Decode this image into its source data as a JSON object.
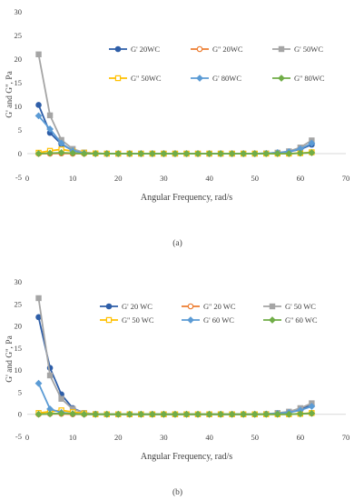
{
  "chart_data": [
    {
      "type": "line",
      "panel_label": "(a)",
      "ylabel": "G' and G'', Pa",
      "xlabel": "Angular Frequency, rad/s",
      "xlim": [
        0,
        70
      ],
      "ylim": [
        -5,
        30
      ],
      "xticks": [
        0,
        10,
        20,
        30,
        40,
        50,
        60,
        70
      ],
      "yticks": [
        -5,
        0,
        5,
        10,
        15,
        20,
        25,
        30
      ],
      "legend_position": "top-right",
      "series": [
        {
          "name": "G' 20WC",
          "color": "#2e5ea8",
          "marker": "circle",
          "filled": true,
          "x": [
            2.5,
            5,
            7.5,
            10,
            12.5,
            15,
            17.5,
            20,
            22.5,
            25,
            27.5,
            30,
            32.5,
            35,
            37.5,
            40,
            42.5,
            45,
            47.5,
            50,
            52.5,
            55,
            57.5,
            60,
            62.5
          ],
          "y": [
            10.3,
            4.4,
            2,
            0.7,
            0.15,
            0.05,
            0,
            0,
            0,
            0,
            0,
            0,
            0,
            0,
            0,
            0,
            0,
            0,
            0,
            0,
            0.05,
            0.2,
            0.4,
            0.9,
            1.9
          ]
        },
        {
          "name": "G'' 20WC",
          "color": "#ed7d31",
          "marker": "circle",
          "filled": false,
          "x": [
            2.5,
            5,
            7.5,
            10,
            12.5,
            15,
            17.5,
            20,
            22.5,
            25,
            27.5,
            30,
            32.5,
            35,
            37.5,
            40,
            42.5,
            45,
            47.5,
            50,
            52.5,
            55,
            57.5,
            60,
            62.5
          ],
          "y": [
            0,
            0,
            0.05,
            0,
            0,
            0,
            0,
            0,
            0,
            0,
            0,
            0,
            0,
            0,
            0,
            0,
            0,
            0,
            0,
            0,
            0,
            0,
            0,
            0.1,
            0.2
          ]
        },
        {
          "name": "G' 50WC",
          "color": "#a5a5a5",
          "marker": "square",
          "filled": true,
          "x": [
            2.5,
            5,
            7.5,
            10,
            12.5,
            15,
            17.5,
            20,
            22.5,
            25,
            27.5,
            30,
            32.5,
            35,
            37.5,
            40,
            42.5,
            45,
            47.5,
            50,
            52.5,
            55,
            57.5,
            60,
            62.5
          ],
          "y": [
            21,
            8.1,
            2.9,
            1,
            0.25,
            0.05,
            0,
            0,
            0,
            0,
            0,
            0,
            0,
            0,
            0,
            0,
            0,
            0,
            0,
            0,
            0.05,
            0.2,
            0.5,
            1.3,
            2.8
          ]
        },
        {
          "name": "G'' 50WC",
          "color": "#ffc000",
          "marker": "square",
          "filled": false,
          "x": [
            2.5,
            5,
            7.5,
            10,
            12.5,
            15,
            17.5,
            20,
            22.5,
            25,
            27.5,
            30,
            32.5,
            35,
            37.5,
            40,
            42.5,
            45,
            47.5,
            50,
            52.5,
            55,
            57.5,
            60,
            62.5
          ],
          "y": [
            0.2,
            0.6,
            0.9,
            0.5,
            0.2,
            0.05,
            0,
            0,
            0,
            0,
            0,
            0,
            0,
            0,
            0,
            0,
            0,
            0,
            0,
            0,
            0,
            0,
            0,
            0.1,
            0.3
          ]
        },
        {
          "name": "G' 80WC",
          "color": "#5b9bd5",
          "marker": "diamond",
          "filled": true,
          "x": [
            2.5,
            5,
            7.5,
            10,
            12.5,
            15,
            17.5,
            20,
            22.5,
            25,
            27.5,
            30,
            32.5,
            35,
            37.5,
            40,
            42.5,
            45,
            47.5,
            50,
            52.5,
            55,
            57.5,
            60,
            62.5
          ],
          "y": [
            8,
            5.2,
            2.2,
            0.6,
            0.1,
            0,
            0,
            0,
            0,
            0,
            0,
            0,
            0,
            0,
            0,
            0,
            0,
            0,
            0,
            0,
            0.05,
            0.2,
            0.4,
            1,
            2.2
          ]
        },
        {
          "name": "G'' 80WC",
          "color": "#70ad47",
          "marker": "diamond",
          "filled": true,
          "x": [
            2.5,
            5,
            7.5,
            10,
            12.5,
            15,
            17.5,
            20,
            22.5,
            25,
            27.5,
            30,
            32.5,
            35,
            37.5,
            40,
            42.5,
            45,
            47.5,
            50,
            52.5,
            55,
            57.5,
            60,
            62.5
          ],
          "y": [
            0,
            0.1,
            0.2,
            0.1,
            0,
            0,
            0,
            0,
            0,
            0,
            0,
            0,
            0,
            0,
            0,
            0,
            0,
            0,
            0,
            0,
            0,
            0,
            0,
            0.1,
            0.2
          ]
        }
      ]
    },
    {
      "type": "line",
      "panel_label": "(b)",
      "ylabel": "G' and G'', Pa",
      "xlabel": "Angular Frequency, rad/s",
      "xlim": [
        0,
        70
      ],
      "ylim": [
        -5,
        30
      ],
      "xticks": [
        0,
        10,
        20,
        30,
        40,
        50,
        60,
        70
      ],
      "yticks": [
        -5,
        0,
        5,
        10,
        15,
        20,
        25,
        30
      ],
      "legend_position": "top-right",
      "series": [
        {
          "name": "G' 20 WC",
          "color": "#2e5ea8",
          "marker": "circle",
          "filled": true,
          "x": [
            2.5,
            5,
            7.5,
            10,
            12.5,
            15,
            17.5,
            20,
            22.5,
            25,
            27.5,
            30,
            32.5,
            35,
            37.5,
            40,
            42.5,
            45,
            47.5,
            50,
            52.5,
            55,
            57.5,
            60,
            62.5
          ],
          "y": [
            22,
            10.5,
            4.5,
            1.4,
            0.3,
            0.05,
            0,
            0,
            0,
            0,
            0,
            0,
            0,
            0,
            0,
            0,
            0,
            0,
            0,
            0,
            0.05,
            0.2,
            0.5,
            1.1,
            2.1
          ]
        },
        {
          "name": "G'' 20 WC",
          "color": "#ed7d31",
          "marker": "circle",
          "filled": false,
          "x": [
            2.5,
            5,
            7.5,
            10,
            12.5,
            15,
            17.5,
            20,
            22.5,
            25,
            27.5,
            30,
            32.5,
            35,
            37.5,
            40,
            42.5,
            45,
            47.5,
            50,
            52.5,
            55,
            57.5,
            60,
            62.5
          ],
          "y": [
            0,
            0.1,
            0.1,
            0,
            0,
            0,
            0,
            0,
            0,
            0,
            0,
            0,
            0,
            0,
            0,
            0,
            0,
            0,
            0,
            0,
            0,
            0,
            0,
            0.1,
            0.2
          ]
        },
        {
          "name": "G' 50 WC",
          "color": "#a5a5a5",
          "marker": "square",
          "filled": true,
          "x": [
            2.5,
            5,
            7.5,
            10,
            12.5,
            15,
            17.5,
            20,
            22.5,
            25,
            27.5,
            30,
            32.5,
            35,
            37.5,
            40,
            42.5,
            45,
            47.5,
            50,
            52.5,
            55,
            57.5,
            60,
            62.5
          ],
          "y": [
            26.3,
            8.8,
            3.5,
            1.2,
            0.3,
            0.05,
            0,
            0,
            0,
            0,
            0,
            0,
            0,
            0,
            0,
            0,
            0,
            0,
            0,
            0,
            0.05,
            0.3,
            0.6,
            1.4,
            2.5
          ]
        },
        {
          "name": "G'' 50 WC",
          "color": "#ffc000",
          "marker": "square",
          "filled": false,
          "x": [
            2.5,
            5,
            7.5,
            10,
            12.5,
            15,
            17.5,
            20,
            22.5,
            25,
            27.5,
            30,
            32.5,
            35,
            37.5,
            40,
            42.5,
            45,
            47.5,
            50,
            52.5,
            55,
            57.5,
            60,
            62.5
          ],
          "y": [
            0.3,
            0.6,
            0.9,
            0.5,
            0.2,
            0,
            0,
            0,
            0,
            0,
            0,
            0,
            0,
            0,
            0,
            0,
            0,
            0,
            0,
            0,
            0,
            0,
            0,
            0.1,
            0.3
          ]
        },
        {
          "name": "G' 60 WC",
          "color": "#5b9bd5",
          "marker": "diamond",
          "filled": true,
          "x": [
            2.5,
            5,
            7.5,
            10,
            12.5,
            15,
            17.5,
            20,
            22.5,
            25,
            27.5,
            30,
            32.5,
            35,
            37.5,
            40,
            42.5,
            45,
            47.5,
            50,
            52.5,
            55,
            57.5,
            60,
            62.5
          ],
          "y": [
            7,
            1.2,
            0.4,
            0.1,
            0,
            0,
            0,
            0,
            0,
            0,
            0,
            0,
            0,
            0,
            0,
            0,
            0,
            0,
            0,
            0,
            0.05,
            0.2,
            0.4,
            0.9,
            1.8
          ]
        },
        {
          "name": "G'' 60 WC",
          "color": "#70ad47",
          "marker": "diamond",
          "filled": true,
          "x": [
            2.5,
            5,
            7.5,
            10,
            12.5,
            15,
            17.5,
            20,
            22.5,
            25,
            27.5,
            30,
            32.5,
            35,
            37.5,
            40,
            42.5,
            45,
            47.5,
            50,
            52.5,
            55,
            57.5,
            60,
            62.5
          ],
          "y": [
            0,
            0.1,
            0.2,
            0.1,
            0,
            0,
            0,
            0,
            0,
            0,
            0,
            0,
            0,
            0,
            0,
            0,
            0,
            0,
            0,
            0,
            0,
            0,
            0,
            0.1,
            0.2
          ]
        }
      ]
    }
  ]
}
